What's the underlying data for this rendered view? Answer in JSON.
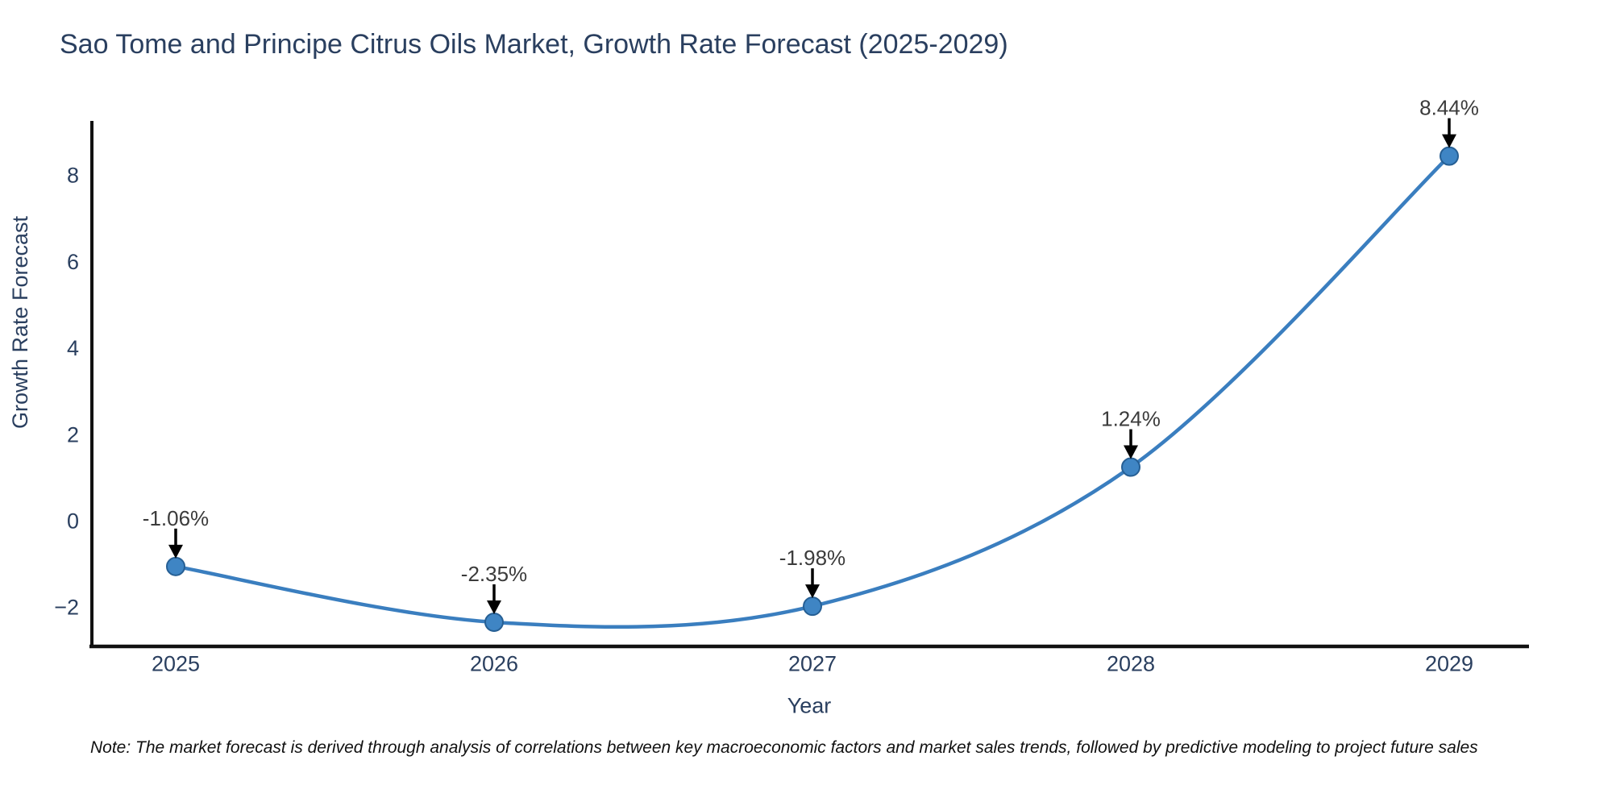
{
  "chart_data": {
    "type": "line",
    "line_shape": "spline",
    "title": "Sao Tome and Principe Citrus Oils Market, Growth Rate Forecast (2025-2029)",
    "xlabel": "Year",
    "ylabel": "Growth Rate Forecast",
    "categories": [
      "2025",
      "2026",
      "2027",
      "2028",
      "2029"
    ],
    "values": [
      -1.06,
      -2.35,
      -1.98,
      1.24,
      8.44
    ],
    "point_labels": [
      "-1.06%",
      "-2.35%",
      "-1.98%",
      "1.24%",
      "8.44%"
    ],
    "ytick_values": [
      -2,
      0,
      2,
      4,
      6,
      8
    ],
    "ytick_labels": [
      "−2",
      "0",
      "2",
      "4",
      "6",
      "8"
    ],
    "ylim": [
      -2.96,
      9.4
    ],
    "grid": false,
    "legend": "none",
    "colors": {
      "line": "#3a7ebf",
      "marker_fill": "#3f85c4",
      "marker_edge": "#265f94",
      "axis": "#111111",
      "text": "#2a3f5f",
      "annotation_text": "#3b3b3b",
      "arrow": "#000000",
      "background": "#ffffff"
    }
  },
  "note": {
    "text": "Note: The market forecast is derived through analysis of correlations between key macroeconomic factors and market sales trends, followed by predictive modeling to project future sales"
  }
}
